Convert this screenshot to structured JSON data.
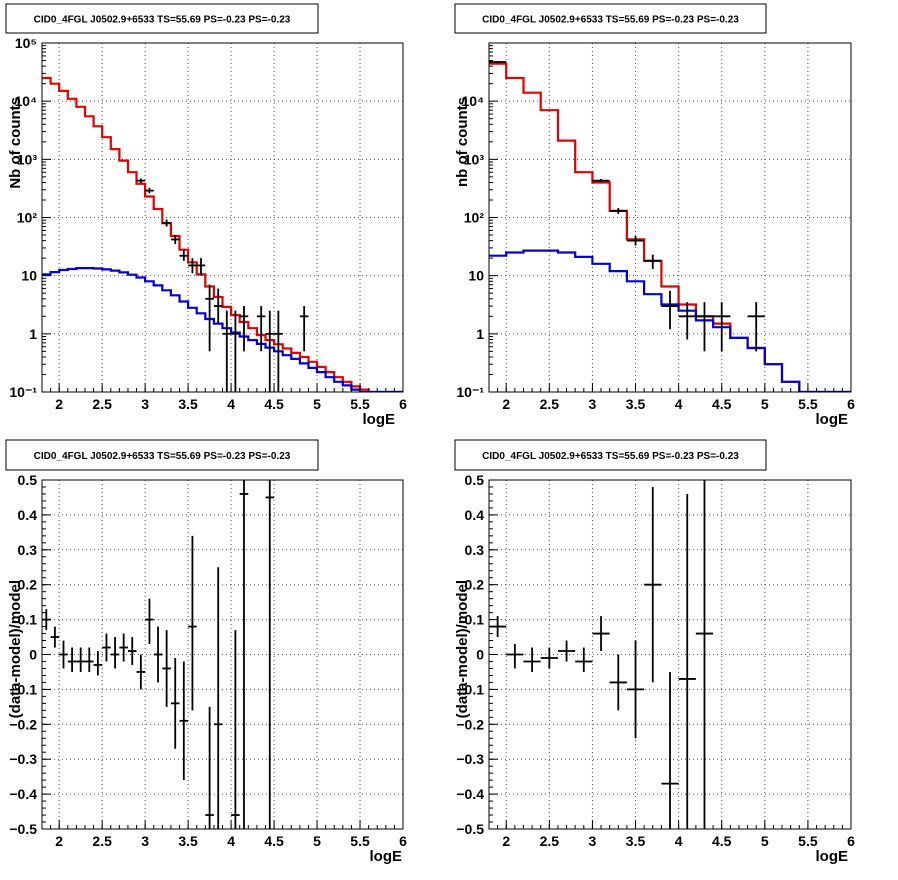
{
  "colors": {
    "data": "#000000",
    "total_model": "#e00000",
    "source_model": "#0000d0",
    "grid": "#555555"
  },
  "chart_data": [
    {
      "type": "line",
      "title": "CID0_4FGL J0502.9+6533 TS=55.69 PS=-0.23 PS=-0.23",
      "xlabel": "logE",
      "ylabel": "Nb of counts",
      "xlim": [
        1.8,
        6.0
      ],
      "ylim": [
        0.1,
        100000
      ],
      "yscale": "log",
      "grid": true,
      "x_ticks": [
        2,
        2.5,
        3,
        3.5,
        4,
        4.5,
        5,
        5.5,
        6
      ],
      "y_ticks": [
        0.1,
        1,
        10,
        100,
        1000,
        10000,
        100000
      ],
      "x_tick_labels": [
        "2",
        "2.5",
        "3",
        "3.5",
        "4",
        "4.5",
        "5",
        "5.5",
        "6"
      ],
      "y_tick_labels": [
        "10⁻¹",
        "1",
        "10",
        "10²",
        "10³",
        "10⁴",
        "10⁵"
      ],
      "series": [
        {
          "kind": "step",
          "color": "red",
          "bins": [
            1.8,
            1.9,
            2.0,
            2.1,
            2.2,
            2.3,
            2.4,
            2.5,
            2.6,
            2.7,
            2.8,
            2.9,
            3.0,
            3.1,
            3.2,
            3.3,
            3.4,
            3.5,
            3.6,
            3.7,
            3.8,
            3.9,
            4.0,
            4.1,
            4.2,
            4.3,
            4.4,
            4.5,
            4.6,
            4.7,
            4.8,
            4.9,
            5.0,
            5.1,
            5.2,
            5.3,
            5.4,
            5.5,
            5.6,
            5.7,
            5.8,
            5.9,
            6.0
          ],
          "values": [
            25000,
            20000,
            15000,
            11000,
            8000,
            5500,
            3700,
            2400,
            1500,
            950,
            600,
            380,
            230,
            140,
            80,
            48,
            28,
            17,
            10.5,
            6.5,
            4.3,
            2.9,
            2.1,
            1.6,
            1.25,
            0.95,
            0.78,
            0.66,
            0.56,
            0.47,
            0.4,
            0.33,
            0.27,
            0.22,
            0.18,
            0.15,
            0.125,
            0.11,
            0.1,
            0.1,
            0.1,
            0.1
          ]
        },
        {
          "kind": "step",
          "color": "blue",
          "bins": [
            1.8,
            1.9,
            2.0,
            2.1,
            2.2,
            2.3,
            2.4,
            2.5,
            2.6,
            2.7,
            2.8,
            2.9,
            3.0,
            3.1,
            3.2,
            3.3,
            3.4,
            3.5,
            3.6,
            3.7,
            3.8,
            3.9,
            4.0,
            4.1,
            4.2,
            4.3,
            4.4,
            4.5,
            4.6,
            4.7,
            4.8,
            4.9,
            5.0,
            5.1,
            5.2,
            5.3,
            5.4,
            5.5,
            5.6,
            5.7,
            5.8,
            5.9,
            6.0
          ],
          "values": [
            10.5,
            11.5,
            12.5,
            13,
            13.5,
            13.5,
            13.3,
            12.8,
            12.2,
            11.4,
            10.4,
            9.3,
            8,
            6.8,
            5.6,
            4.6,
            3.6,
            2.8,
            2.25,
            1.8,
            1.5,
            1.25,
            1.05,
            0.9,
            0.78,
            0.67,
            0.58,
            0.5,
            0.43,
            0.37,
            0.31,
            0.26,
            0.22,
            0.18,
            0.15,
            0.13,
            0.11,
            0.1,
            0.1,
            0.1,
            0.1,
            0.1
          ]
        },
        {
          "kind": "points",
          "color": "black",
          "points": [
            {
              "x": 2.95,
              "xerr": 0.05,
              "y": 430,
              "ylo": 390,
              "yhi": 470
            },
            {
              "x": 3.05,
              "xerr": 0.05,
              "y": 290,
              "ylo": 260,
              "yhi": 325
            },
            {
              "x": 3.25,
              "xerr": 0.05,
              "y": 80,
              "ylo": 70,
              "yhi": 92
            },
            {
              "x": 3.35,
              "xerr": 0.05,
              "y": 42,
              "ylo": 35,
              "yhi": 50
            },
            {
              "x": 3.45,
              "xerr": 0.05,
              "y": 22,
              "ylo": 18,
              "yhi": 28
            },
            {
              "x": 3.55,
              "xerr": 0.05,
              "y": 15,
              "ylo": 11,
              "yhi": 20
            },
            {
              "x": 3.65,
              "xerr": 0.05,
              "y": 15,
              "ylo": 10,
              "yhi": 20
            },
            {
              "x": 3.75,
              "xerr": 0.05,
              "y": 4,
              "ylo": 0.5,
              "yhi": 7
            },
            {
              "x": 3.85,
              "xerr": 0.05,
              "y": 3,
              "ylo": 1.5,
              "yhi": 6
            },
            {
              "x": 3.95,
              "xerr": 0.05,
              "y": 1,
              "ylo": 0.1,
              "yhi": 2.5
            },
            {
              "x": 4.05,
              "xerr": 0.05,
              "y": 1,
              "ylo": 0.1,
              "yhi": 2.5
            },
            {
              "x": 4.15,
              "xerr": 0.05,
              "y": 2,
              "ylo": 0.5,
              "yhi": 3
            },
            {
              "x": 4.35,
              "xerr": 0.05,
              "y": 2,
              "ylo": 0.5,
              "yhi": 3
            },
            {
              "x": 4.45,
              "xerr": 0.05,
              "y": 1,
              "ylo": 0.1,
              "yhi": 2.5
            },
            {
              "x": 4.55,
              "xerr": 0.05,
              "y": 1,
              "ylo": 0.1,
              "yhi": 2.5
            },
            {
              "x": 4.85,
              "xerr": 0.05,
              "y": 2,
              "ylo": 0.5,
              "yhi": 3
            }
          ]
        }
      ]
    },
    {
      "type": "line",
      "title": "CID0_4FGL J0502.9+6533 TS=55.69 PS=-0.23 PS=-0.23",
      "xlabel": "logE",
      "ylabel": "nb of counts",
      "xlim": [
        1.8,
        6.0
      ],
      "ylim": [
        0.1,
        100000
      ],
      "yscale": "log",
      "grid": true,
      "x_ticks": [
        2,
        2.5,
        3,
        3.5,
        4,
        4.5,
        5,
        5.5,
        6
      ],
      "y_ticks": [
        0.1,
        1,
        10,
        100,
        1000,
        10000
      ],
      "x_tick_labels": [
        "2",
        "2.5",
        "3",
        "3.5",
        "4",
        "4.5",
        "5",
        "5.5",
        "6"
      ],
      "y_tick_labels": [
        "10⁻¹",
        "1",
        "10",
        "10²",
        "10³",
        "10⁴"
      ],
      "series": [
        {
          "kind": "step",
          "color": "red",
          "bins": [
            1.8,
            2.0,
            2.2,
            2.4,
            2.6,
            2.8,
            3.0,
            3.2,
            3.4,
            3.6,
            3.8,
            4.0,
            4.2,
            4.4,
            4.6,
            4.8,
            5.0,
            5.2,
            5.4,
            5.6,
            5.8,
            6.0
          ],
          "values": [
            44000,
            25000,
            14000,
            7000,
            2100,
            600,
            400,
            130,
            42,
            18,
            6.5,
            3.2,
            2,
            1.5,
            0.85,
            0.57,
            0.3,
            0.15,
            0.1,
            0.1,
            0.1
          ]
        },
        {
          "kind": "step",
          "color": "blue",
          "bins": [
            1.8,
            2.0,
            2.2,
            2.4,
            2.6,
            2.8,
            3.0,
            3.2,
            3.4,
            3.6,
            3.8,
            4.0,
            4.2,
            4.4,
            4.6,
            4.8,
            5.0,
            5.2,
            5.4,
            5.6,
            5.8,
            6.0
          ],
          "values": [
            22,
            25,
            27,
            27,
            25,
            21,
            16,
            12,
            8,
            4.8,
            3.2,
            2.5,
            1.7,
            1.3,
            0.85,
            0.57,
            0.3,
            0.15,
            0.1,
            0.1,
            0.1
          ]
        },
        {
          "kind": "points",
          "color": "black",
          "points": [
            {
              "x": 1.9,
              "xerr": 0.1,
              "y": 47000,
              "ylo": 45000,
              "yhi": 49000
            },
            {
              "x": 3.1,
              "xerr": 0.1,
              "y": 430,
              "ylo": 400,
              "yhi": 460
            },
            {
              "x": 3.3,
              "xerr": 0.1,
              "y": 130,
              "ylo": 115,
              "yhi": 145
            },
            {
              "x": 3.5,
              "xerr": 0.1,
              "y": 40,
              "ylo": 33,
              "yhi": 48
            },
            {
              "x": 3.7,
              "xerr": 0.1,
              "y": 18,
              "ylo": 13,
              "yhi": 23
            },
            {
              "x": 3.9,
              "xerr": 0.1,
              "y": 3,
              "ylo": 1.2,
              "yhi": 5.5
            },
            {
              "x": 4.1,
              "xerr": 0.1,
              "y": 2,
              "ylo": 0.8,
              "yhi": 3.5
            },
            {
              "x": 4.3,
              "xerr": 0.1,
              "y": 2,
              "ylo": 0.5,
              "yhi": 3.5
            },
            {
              "x": 4.5,
              "xerr": 0.1,
              "y": 2,
              "ylo": 0.5,
              "yhi": 3.5
            },
            {
              "x": 4.9,
              "xerr": 0.1,
              "y": 2,
              "ylo": 0.5,
              "yhi": 3.5
            }
          ]
        }
      ]
    },
    {
      "type": "scatter",
      "title": "CID0_4FGL J0502.9+6533 TS=55.69 PS=-0.23 PS=-0.23",
      "xlabel": "logE",
      "ylabel": "(data-model)/model",
      "xlim": [
        1.8,
        6.0
      ],
      "ylim": [
        -0.5,
        0.5
      ],
      "grid": true,
      "x_ticks": [
        2,
        2.5,
        3,
        3.5,
        4,
        4.5,
        5,
        5.5,
        6
      ],
      "y_ticks": [
        -0.5,
        -0.4,
        -0.3,
        -0.2,
        -0.1,
        0,
        0.1,
        0.2,
        0.3,
        0.4,
        0.5
      ],
      "x_tick_labels": [
        "2",
        "2.5",
        "3",
        "3.5",
        "4",
        "4.5",
        "5",
        "5.5",
        "6"
      ],
      "y_tick_labels": [
        "−0.5",
        "−0.4",
        "−0.3",
        "−0.2",
        "−0.1",
        "0",
        "0.1",
        "0.2",
        "0.3",
        "0.4",
        "0.5"
      ],
      "series": [
        {
          "kind": "points",
          "color": "black",
          "points": [
            {
              "x": 1.85,
              "xerr": 0.05,
              "y": 0.1,
              "ylo": 0.07,
              "yhi": 0.13
            },
            {
              "x": 1.95,
              "xerr": 0.05,
              "y": 0.05,
              "ylo": 0.02,
              "yhi": 0.08
            },
            {
              "x": 2.05,
              "xerr": 0.05,
              "y": 0.0,
              "ylo": -0.04,
              "yhi": 0.04
            },
            {
              "x": 2.15,
              "xerr": 0.05,
              "y": -0.02,
              "ylo": -0.05,
              "yhi": 0.02
            },
            {
              "x": 2.25,
              "xerr": 0.05,
              "y": -0.02,
              "ylo": -0.05,
              "yhi": 0.02
            },
            {
              "x": 2.35,
              "xerr": 0.05,
              "y": -0.02,
              "ylo": -0.05,
              "yhi": 0.02
            },
            {
              "x": 2.45,
              "xerr": 0.05,
              "y": -0.03,
              "ylo": -0.06,
              "yhi": 0.01
            },
            {
              "x": 2.55,
              "xerr": 0.05,
              "y": 0.02,
              "ylo": -0.02,
              "yhi": 0.06
            },
            {
              "x": 2.65,
              "xerr": 0.05,
              "y": 0.0,
              "ylo": -0.04,
              "yhi": 0.05
            },
            {
              "x": 2.75,
              "xerr": 0.05,
              "y": 0.02,
              "ylo": -0.02,
              "yhi": 0.06
            },
            {
              "x": 2.85,
              "xerr": 0.05,
              "y": 0.01,
              "ylo": -0.03,
              "yhi": 0.05
            },
            {
              "x": 2.95,
              "xerr": 0.05,
              "y": -0.05,
              "ylo": -0.1,
              "yhi": 0.0
            },
            {
              "x": 3.05,
              "xerr": 0.05,
              "y": 0.1,
              "ylo": 0.03,
              "yhi": 0.16
            },
            {
              "x": 3.15,
              "xerr": 0.05,
              "y": 0.0,
              "ylo": -0.08,
              "yhi": 0.08
            },
            {
              "x": 3.25,
              "xerr": 0.05,
              "y": -0.04,
              "ylo": -0.15,
              "yhi": 0.07
            },
            {
              "x": 3.35,
              "xerr": 0.05,
              "y": -0.14,
              "ylo": -0.27,
              "yhi": -0.01
            },
            {
              "x": 3.45,
              "xerr": 0.05,
              "y": -0.19,
              "ylo": -0.36,
              "yhi": -0.02
            },
            {
              "x": 3.55,
              "xerr": 0.05,
              "y": 0.08,
              "ylo": -0.16,
              "yhi": 0.34
            },
            {
              "x": 3.75,
              "xerr": 0.05,
              "y": -0.46,
              "ylo": -0.5,
              "yhi": -0.15
            },
            {
              "x": 3.85,
              "xerr": 0.05,
              "y": -0.2,
              "ylo": -0.5,
              "yhi": 0.25
            },
            {
              "x": 4.05,
              "xerr": 0.05,
              "y": -0.46,
              "ylo": -0.5,
              "yhi": 0.07
            },
            {
              "x": 4.15,
              "xerr": 0.05,
              "y": 0.46,
              "ylo": -0.5,
              "yhi": 0.5
            },
            {
              "x": 4.45,
              "xerr": 0.05,
              "y": 0.45,
              "ylo": -0.5,
              "yhi": 0.5
            }
          ]
        }
      ]
    },
    {
      "type": "scatter",
      "title": "CID0_4FGL J0502.9+6533 TS=55.69 PS=-0.23 PS=-0.23",
      "xlabel": "logE",
      "ylabel": "(data-model)/model",
      "xlim": [
        1.8,
        6.0
      ],
      "ylim": [
        -0.5,
        0.5
      ],
      "grid": true,
      "x_ticks": [
        2,
        2.5,
        3,
        3.5,
        4,
        4.5,
        5,
        5.5,
        6
      ],
      "y_ticks": [
        -0.5,
        -0.4,
        -0.3,
        -0.2,
        -0.1,
        0,
        0.1,
        0.2,
        0.3,
        0.4,
        0.5
      ],
      "x_tick_labels": [
        "2",
        "2.5",
        "3",
        "3.5",
        "4",
        "4.5",
        "5",
        "5.5",
        "6"
      ],
      "y_tick_labels": [
        "−0.5",
        "−0.4",
        "−0.3",
        "−0.2",
        "−0.1",
        "0",
        "0.1",
        "0.2",
        "0.3",
        "0.4",
        "0.5"
      ],
      "series": [
        {
          "kind": "points",
          "color": "black",
          "points": [
            {
              "x": 1.9,
              "xerr": 0.1,
              "y": 0.08,
              "ylo": 0.05,
              "yhi": 0.11
            },
            {
              "x": 2.1,
              "xerr": 0.1,
              "y": 0.0,
              "ylo": -0.04,
              "yhi": 0.03
            },
            {
              "x": 2.3,
              "xerr": 0.1,
              "y": -0.02,
              "ylo": -0.05,
              "yhi": 0.02
            },
            {
              "x": 2.5,
              "xerr": 0.1,
              "y": -0.01,
              "ylo": -0.04,
              "yhi": 0.02
            },
            {
              "x": 2.7,
              "xerr": 0.1,
              "y": 0.01,
              "ylo": -0.02,
              "yhi": 0.04
            },
            {
              "x": 2.9,
              "xerr": 0.1,
              "y": -0.02,
              "ylo": -0.05,
              "yhi": 0.02
            },
            {
              "x": 3.1,
              "xerr": 0.1,
              "y": 0.06,
              "ylo": 0.01,
              "yhi": 0.11
            },
            {
              "x": 3.3,
              "xerr": 0.1,
              "y": -0.08,
              "ylo": -0.16,
              "yhi": 0.0
            },
            {
              "x": 3.5,
              "xerr": 0.1,
              "y": -0.1,
              "ylo": -0.24,
              "yhi": 0.04
            },
            {
              "x": 3.7,
              "xerr": 0.1,
              "y": 0.2,
              "ylo": -0.08,
              "yhi": 0.48
            },
            {
              "x": 3.9,
              "xerr": 0.1,
              "y": -0.37,
              "ylo": -0.5,
              "yhi": -0.05
            },
            {
              "x": 4.1,
              "xerr": 0.1,
              "y": -0.07,
              "ylo": -0.5,
              "yhi": 0.46
            },
            {
              "x": 4.3,
              "xerr": 0.1,
              "y": 0.06,
              "ylo": -0.5,
              "yhi": 0.5
            }
          ]
        }
      ]
    }
  ]
}
